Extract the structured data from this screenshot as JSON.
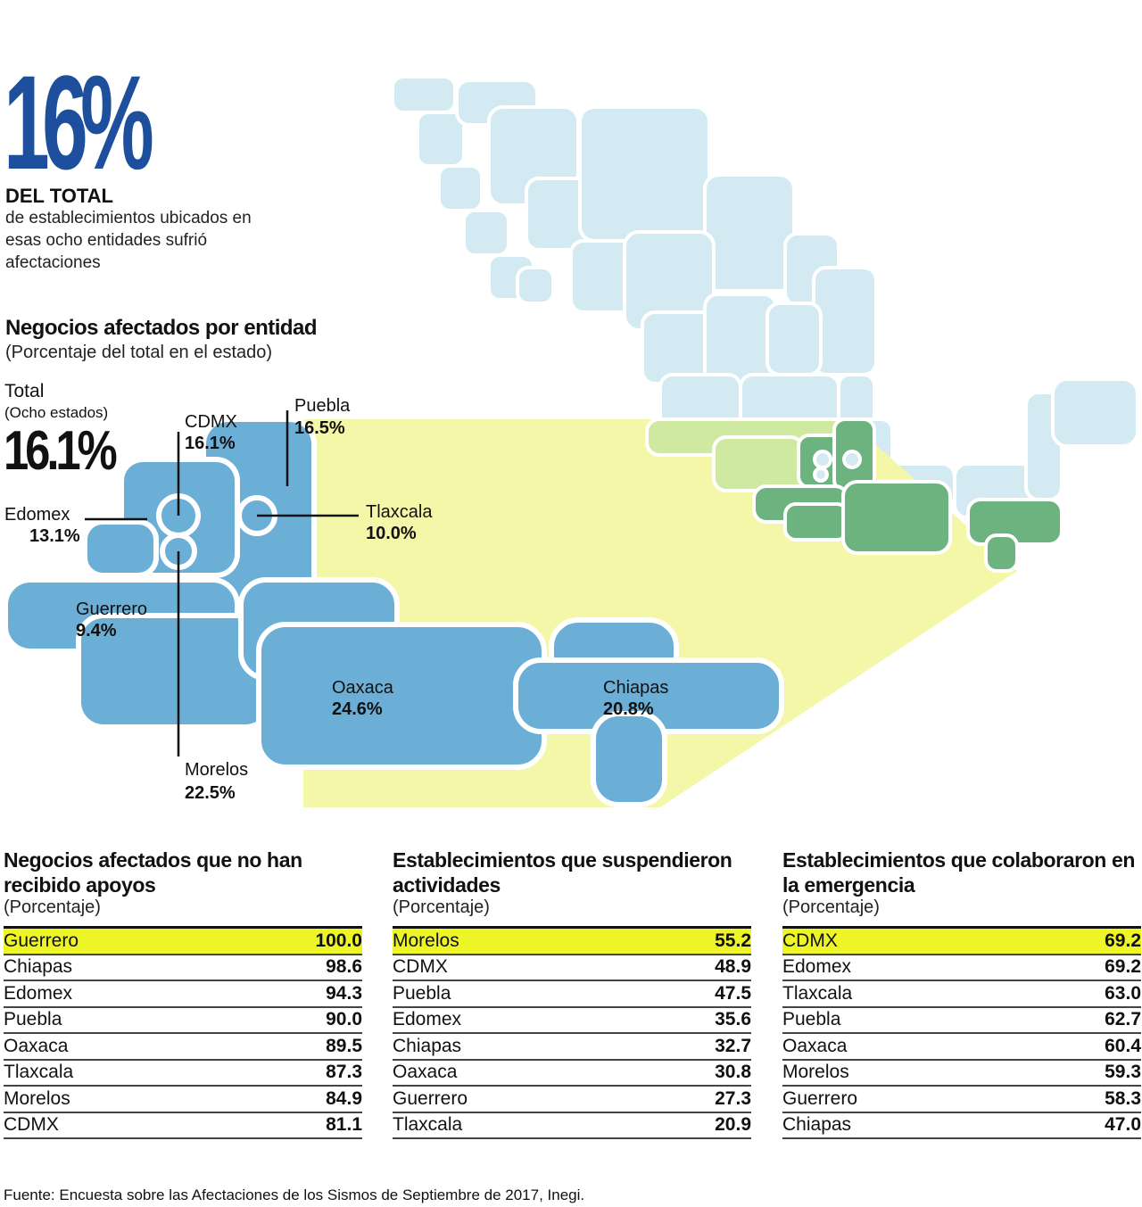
{
  "headline": {
    "stat": "16%",
    "bold": "DEL TOTAL",
    "text": "de establecimientos ubicados en esas ocho entidades sufrió afectaciones"
  },
  "map_section": {
    "title": "Negocios afectados por entidad",
    "subtitle": "(Porcentaje del total en el estado)",
    "total_label": "Total",
    "total_sub": "(Ocho estados)",
    "total_value": "16.1%"
  },
  "states": [
    {
      "name": "Puebla",
      "value": "16.5%"
    },
    {
      "name": "CDMX",
      "value": "16.1%"
    },
    {
      "name": "Edomex",
      "value": "13.1%"
    },
    {
      "name": "Tlaxcala",
      "value": "10.0%"
    },
    {
      "name": "Guerrero",
      "value": "9.4%"
    },
    {
      "name": "Oaxaca",
      "value": "24.6%"
    },
    {
      "name": "Chiapas",
      "value": "20.8%"
    },
    {
      "name": "Morelos",
      "value": "22.5%"
    }
  ],
  "colors": {
    "stat_blue": "#1d4f9c",
    "state_blue": "#6baed6",
    "country_light": "#d3eaf3",
    "affected_green": "#6db380",
    "highlight_yellow": "#eef526",
    "zoom_yellow": "#f5f7a8"
  },
  "tables": [
    {
      "title": "Negocios afectados que no han recibido apoyos",
      "subtitle": "(Porcentaje)",
      "rows": [
        {
          "name": "Guerrero",
          "value": "100.0"
        },
        {
          "name": "Chiapas",
          "value": "98.6"
        },
        {
          "name": "Edomex",
          "value": "94.3"
        },
        {
          "name": "Puebla",
          "value": "90.0"
        },
        {
          "name": "Oaxaca",
          "value": "89.5"
        },
        {
          "name": "Tlaxcala",
          "value": "87.3"
        },
        {
          "name": "Morelos",
          "value": "84.9"
        },
        {
          "name": "CDMX",
          "value": "81.1"
        }
      ]
    },
    {
      "title": "Establecimientos que suspendieron actividades",
      "subtitle": "(Porcentaje)",
      "rows": [
        {
          "name": "Morelos",
          "value": "55.2"
        },
        {
          "name": "CDMX",
          "value": "48.9"
        },
        {
          "name": "Puebla",
          "value": "47.5"
        },
        {
          "name": "Edomex",
          "value": "35.6"
        },
        {
          "name": "Chiapas",
          "value": "32.7"
        },
        {
          "name": "Oaxaca",
          "value": "30.8"
        },
        {
          "name": "Guerrero",
          "value": "27.3"
        },
        {
          "name": "Tlaxcala",
          "value": "20.9"
        }
      ]
    },
    {
      "title": "Establecimientos que colaboraron en la emergencia",
      "subtitle": "(Porcentaje)",
      "rows": [
        {
          "name": "CDMX",
          "value": "69.2"
        },
        {
          "name": "Edomex",
          "value": "69.2"
        },
        {
          "name": "Tlaxcala",
          "value": "63.0"
        },
        {
          "name": "Puebla",
          "value": "62.7"
        },
        {
          "name": "Oaxaca",
          "value": "60.4"
        },
        {
          "name": "Morelos",
          "value": "59.3"
        },
        {
          "name": "Guerrero",
          "value": "58.3"
        },
        {
          "name": "Chiapas",
          "value": "47.0"
        }
      ]
    }
  ],
  "source": "Fuente: Encuesta sobre las Afectaciones de los Sismos de Septiembre de 2017, Inegi."
}
